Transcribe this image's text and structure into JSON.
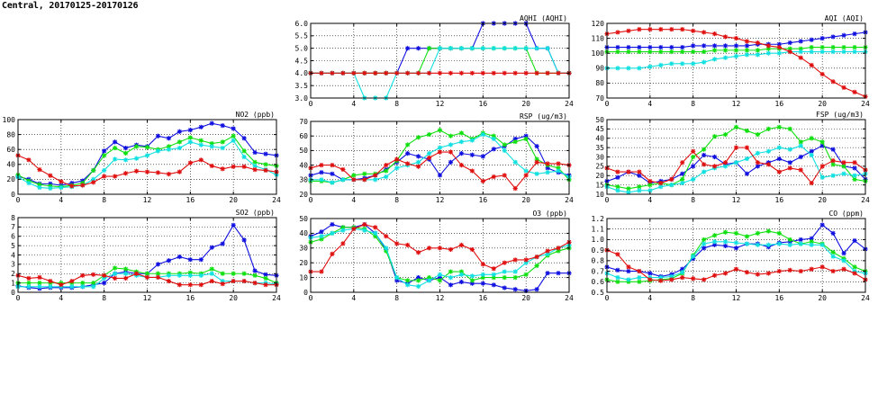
{
  "header": {
    "title": "Central, 20170125-20170126"
  },
  "colors": {
    "blue": "#1010e0",
    "green": "#10e010",
    "cyan": "#10e0e0",
    "red": "#e01010"
  },
  "chart_data": [
    {
      "id": "aqhi",
      "type": "line",
      "title": "AQHI (AQHI)",
      "xlim": [
        0,
        24
      ],
      "ylim": [
        3.0,
        6.0
      ],
      "xticks": [
        "0",
        "4",
        "8",
        "12",
        "16",
        "20",
        "24"
      ],
      "yticks": [
        "3.0",
        "3.5",
        "4.0",
        "4.5",
        "5.0",
        "5.5",
        "6.0"
      ],
      "grid": true,
      "series": [
        {
          "color": "blue",
          "values": [
            4,
            4,
            4,
            4,
            4,
            4,
            4,
            4,
            4,
            5,
            5,
            5,
            5,
            5,
            5,
            5,
            6,
            6,
            6,
            6,
            6,
            5,
            5,
            4,
            4
          ]
        },
        {
          "color": "green",
          "values": [
            4,
            4,
            4,
            4,
            4,
            4,
            4,
            4,
            4,
            4,
            4,
            5,
            5,
            5,
            5,
            5,
            5,
            5,
            5,
            5,
            5,
            4,
            4,
            4,
            4
          ]
        },
        {
          "color": "cyan",
          "values": [
            4,
            4,
            4,
            4,
            4,
            3,
            3,
            3,
            4,
            4,
            4,
            4,
            5,
            5,
            5,
            5,
            5,
            5,
            5,
            5,
            5,
            5,
            5,
            4,
            4
          ]
        },
        {
          "color": "red",
          "values": [
            4,
            4,
            4,
            4,
            4,
            4,
            4,
            4,
            4,
            4,
            4,
            4,
            4,
            4,
            4,
            4,
            4,
            4,
            4,
            4,
            4,
            4,
            4,
            4,
            4
          ]
        }
      ]
    },
    {
      "id": "aqi",
      "type": "line",
      "title": "AQI (AQI)",
      "xlim": [
        0,
        24
      ],
      "ylim": [
        70,
        120
      ],
      "xticks": [
        "0",
        "4",
        "8",
        "12",
        "16",
        "20",
        "24"
      ],
      "yticks": [
        "70",
        "80",
        "90",
        "100",
        "110",
        "120"
      ],
      "grid": true,
      "series": [
        {
          "color": "blue",
          "values": [
            104,
            104,
            104,
            104,
            104,
            104,
            104,
            104,
            105,
            105,
            105,
            105,
            105,
            105,
            106,
            106,
            106,
            107,
            108,
            109,
            110,
            111,
            112,
            113,
            114
          ]
        },
        {
          "color": "green",
          "values": [
            101,
            101,
            101,
            101,
            101,
            101,
            101,
            101,
            101,
            101,
            102,
            102,
            102,
            102,
            102,
            103,
            103,
            103,
            103,
            104,
            104,
            104,
            104,
            104,
            104
          ]
        },
        {
          "color": "cyan",
          "values": [
            90,
            90,
            90,
            90,
            91,
            92,
            93,
            93,
            93,
            94,
            96,
            97,
            98,
            99,
            99,
            100,
            100,
            101,
            101,
            101,
            101,
            101,
            101,
            101,
            101
          ]
        },
        {
          "color": "red",
          "values": [
            113,
            114,
            115,
            116,
            116,
            116,
            116,
            116,
            115,
            114,
            113,
            111,
            110,
            108,
            107,
            105,
            104,
            101,
            97,
            92,
            86,
            81,
            77,
            74,
            71
          ]
        }
      ]
    },
    {
      "id": "no2",
      "type": "line",
      "title": "NO2 (ppb)",
      "xlim": [
        0,
        24
      ],
      "ylim": [
        0,
        100
      ],
      "xticks": [
        "0",
        "4",
        "8",
        "12",
        "16",
        "20",
        "24"
      ],
      "yticks": [
        "0",
        "20",
        "40",
        "60",
        "80",
        "100"
      ],
      "grid": true,
      "series": [
        {
          "color": "blue",
          "values": [
            24,
            20,
            14,
            14,
            12,
            15,
            18,
            32,
            58,
            70,
            62,
            66,
            64,
            78,
            75,
            84,
            86,
            90,
            95,
            92,
            88,
            75,
            56,
            54,
            52
          ]
        },
        {
          "color": "green",
          "values": [
            26,
            18,
            13,
            11,
            10,
            12,
            15,
            32,
            52,
            62,
            55,
            64,
            63,
            60,
            64,
            70,
            76,
            72,
            68,
            70,
            78,
            58,
            43,
            40,
            38
          ]
        },
        {
          "color": "cyan",
          "values": [
            23,
            15,
            9,
            8,
            9,
            10,
            12,
            20,
            32,
            47,
            46,
            48,
            52,
            58,
            60,
            62,
            70,
            66,
            64,
            62,
            72,
            50,
            38,
            33,
            26
          ]
        },
        {
          "color": "red",
          "values": [
            52,
            46,
            33,
            25,
            17,
            11,
            12,
            16,
            24,
            24,
            28,
            31,
            30,
            29,
            27,
            30,
            42,
            46,
            38,
            34,
            37,
            37,
            33,
            32,
            30
          ]
        }
      ]
    },
    {
      "id": "rsp",
      "type": "line",
      "title": "RSP (ug/m3)",
      "xlim": [
        0,
        24
      ],
      "ylim": [
        20,
        70
      ],
      "xticks": [
        "0",
        "4",
        "8",
        "12",
        "16",
        "20",
        "24"
      ],
      "yticks": [
        "20",
        "30",
        "40",
        "50",
        "60",
        "70"
      ],
      "grid": true,
      "series": [
        {
          "color": "blue",
          "values": [
            33,
            35,
            34,
            30,
            30,
            31,
            33,
            37,
            42,
            48,
            46,
            44,
            33,
            42,
            48,
            47,
            46,
            51,
            53,
            58,
            60,
            53,
            38,
            35,
            33
          ]
        },
        {
          "color": "green",
          "values": [
            29,
            29,
            28,
            30,
            33,
            34,
            34,
            36,
            43,
            54,
            59,
            61,
            64,
            60,
            62,
            58,
            62,
            60,
            54,
            56,
            58,
            44,
            40,
            38,
            30
          ]
        },
        {
          "color": "cyan",
          "values": [
            30,
            30,
            28,
            30,
            30,
            30,
            30,
            32,
            38,
            40,
            42,
            48,
            52,
            54,
            56,
            57,
            61,
            58,
            50,
            42,
            36,
            34,
            35,
            36,
            32
          ]
        },
        {
          "color": "red",
          "values": [
            38,
            40,
            40,
            37,
            30,
            30,
            33,
            40,
            44,
            41,
            39,
            45,
            49,
            49,
            40,
            36,
            29,
            32,
            33,
            24,
            33,
            42,
            41,
            41,
            40
          ]
        }
      ]
    },
    {
      "id": "fsp",
      "type": "line",
      "title": "FSP (ug/m3)",
      "xlim": [
        0,
        24
      ],
      "ylim": [
        10,
        50
      ],
      "xticks": [
        "0",
        "4",
        "8",
        "12",
        "16",
        "20",
        "24"
      ],
      "yticks": [
        "10",
        "15",
        "20",
        "25",
        "30",
        "35",
        "40",
        "45",
        "50"
      ],
      "grid": true,
      "series": [
        {
          "color": "blue",
          "values": [
            17,
            19,
            22,
            20,
            16,
            17,
            18,
            21,
            25,
            31,
            30,
            26,
            27,
            21,
            25,
            27,
            29,
            27,
            30,
            33,
            36,
            34,
            25,
            24,
            18
          ]
        },
        {
          "color": "green",
          "values": [
            15,
            14,
            13,
            14,
            15,
            16,
            15,
            18,
            30,
            34,
            41,
            42,
            46,
            44,
            42,
            45,
            46,
            45,
            38,
            40,
            38,
            26,
            25,
            18,
            17
          ]
        },
        {
          "color": "cyan",
          "values": [
            14,
            12,
            11,
            12,
            12,
            14,
            15,
            16,
            18,
            22,
            24,
            25,
            27,
            29,
            32,
            33,
            35,
            34,
            36,
            31,
            19,
            20,
            21,
            20,
            21
          ]
        },
        {
          "color": "red",
          "values": [
            24,
            22,
            22,
            22,
            17,
            16,
            18,
            27,
            33,
            26,
            25,
            27,
            35,
            35,
            27,
            26,
            22,
            24,
            23,
            16,
            25,
            28,
            27,
            27,
            23
          ]
        }
      ]
    },
    {
      "id": "so2",
      "type": "line",
      "title": "SO2 (ppb)",
      "xlim": [
        0,
        24
      ],
      "ylim": [
        0,
        8
      ],
      "xticks": [
        "0",
        "4",
        "8",
        "12",
        "16",
        "20",
        "24"
      ],
      "yticks": [
        "0",
        "1",
        "2",
        "3",
        "4",
        "5",
        "6",
        "7",
        "8"
      ],
      "grid": true,
      "series": [
        {
          "color": "blue",
          "values": [
            0.7,
            0.5,
            0.4,
            0.5,
            0.5,
            0.5,
            0.6,
            0.8,
            1.0,
            2.0,
            2.2,
            2.0,
            2.0,
            3.0,
            3.4,
            3.8,
            3.5,
            3.5,
            4.8,
            5.2,
            7.2,
            5.6,
            2.3,
            1.9,
            1.8
          ]
        },
        {
          "color": "green",
          "values": [
            1.0,
            1.0,
            1.0,
            1.0,
            1.0,
            1.0,
            1.0,
            1.0,
            1.8,
            2.6,
            2.5,
            2.2,
            2.0,
            2.0,
            2.0,
            2.0,
            2.1,
            2.0,
            2.5,
            2.0,
            2.0,
            2.0,
            1.8,
            1.5,
            1.0
          ]
        },
        {
          "color": "cyan",
          "values": [
            0.6,
            0.6,
            0.6,
            0.6,
            0.6,
            0.6,
            0.6,
            0.6,
            1.5,
            2.0,
            2.0,
            1.8,
            1.6,
            1.6,
            1.8,
            1.8,
            1.8,
            1.8,
            2.0,
            1.2,
            1.2,
            1.2,
            1.0,
            1.0,
            0.9
          ]
        },
        {
          "color": "red",
          "values": [
            1.8,
            1.5,
            1.6,
            1.2,
            0.8,
            1.2,
            1.8,
            1.9,
            1.8,
            1.5,
            1.5,
            2.0,
            1.6,
            1.6,
            1.2,
            0.8,
            0.8,
            0.8,
            1.2,
            0.9,
            1.2,
            1.2,
            1.0,
            0.8,
            0.8
          ]
        }
      ]
    },
    {
      "id": "o3",
      "type": "line",
      "title": "O3 (ppb)",
      "xlim": [
        0,
        24
      ],
      "ylim": [
        0,
        50
      ],
      "xticks": [
        "0",
        "4",
        "8",
        "12",
        "16",
        "20",
        "24"
      ],
      "yticks": [
        "0",
        "10",
        "20",
        "30",
        "40",
        "50"
      ],
      "grid": true,
      "series": [
        {
          "color": "blue",
          "values": [
            38,
            41,
            46,
            44,
            44,
            46,
            40,
            29,
            8,
            6,
            10,
            8,
            10,
            5,
            7,
            6,
            6,
            5,
            3,
            2,
            1,
            2,
            13,
            13,
            13
          ]
        },
        {
          "color": "green",
          "values": [
            34,
            36,
            40,
            44,
            44,
            43,
            38,
            28,
            10,
            8,
            8,
            10,
            8,
            14,
            14,
            8,
            10,
            10,
            10,
            10,
            12,
            18,
            25,
            28,
            30
          ]
        },
        {
          "color": "cyan",
          "values": [
            37,
            38,
            40,
            42,
            43,
            42,
            40,
            30,
            10,
            5,
            4,
            8,
            12,
            10,
            12,
            11,
            12,
            12,
            14,
            14,
            20,
            24,
            26,
            30,
            32
          ]
        },
        {
          "color": "red",
          "values": [
            14,
            14,
            26,
            33,
            43,
            46,
            44,
            38,
            33,
            32,
            27,
            30,
            30,
            29,
            32,
            29,
            19,
            16,
            20,
            22,
            22,
            24,
            28,
            30,
            34
          ]
        }
      ]
    },
    {
      "id": "co",
      "type": "line",
      "title": "CO (ppm)",
      "xlim": [
        0,
        24
      ],
      "ylim": [
        0.5,
        1.2
      ],
      "xticks": [
        "0",
        "4",
        "8",
        "12",
        "16",
        "20",
        "24"
      ],
      "yticks": [
        "0.5",
        "0.6",
        "0.7",
        "0.8",
        "0.9",
        "1.0",
        "1.1",
        "1.2"
      ],
      "grid": true,
      "series": [
        {
          "color": "blue",
          "values": [
            0.74,
            0.71,
            0.7,
            0.7,
            0.68,
            0.65,
            0.67,
            0.72,
            0.82,
            0.92,
            0.95,
            0.94,
            0.92,
            0.96,
            0.96,
            0.93,
            0.97,
            0.98,
            1.0,
            1.01,
            1.14,
            1.06,
            0.87,
            0.99,
            0.91
          ]
        },
        {
          "color": "green",
          "values": [
            0.62,
            0.6,
            0.6,
            0.6,
            0.61,
            0.62,
            0.63,
            0.68,
            0.85,
            1.0,
            1.04,
            1.07,
            1.06,
            1.03,
            1.06,
            1.08,
            1.06,
            1.0,
            0.96,
            0.98,
            0.96,
            0.88,
            0.82,
            0.74,
            0.7
          ]
        },
        {
          "color": "cyan",
          "values": [
            0.68,
            0.64,
            0.62,
            0.64,
            0.64,
            0.64,
            0.65,
            0.69,
            0.84,
            0.96,
            0.98,
            0.98,
            0.97,
            0.96,
            0.95,
            0.95,
            0.96,
            0.95,
            0.96,
            0.95,
            0.95,
            0.84,
            0.8,
            0.7,
            0.68
          ]
        },
        {
          "color": "red",
          "values": [
            0.9,
            0.86,
            0.74,
            0.7,
            0.62,
            0.61,
            0.62,
            0.64,
            0.63,
            0.62,
            0.66,
            0.68,
            0.72,
            0.69,
            0.67,
            0.68,
            0.7,
            0.71,
            0.7,
            0.72,
            0.74,
            0.7,
            0.72,
            0.68,
            0.62
          ]
        }
      ]
    }
  ]
}
